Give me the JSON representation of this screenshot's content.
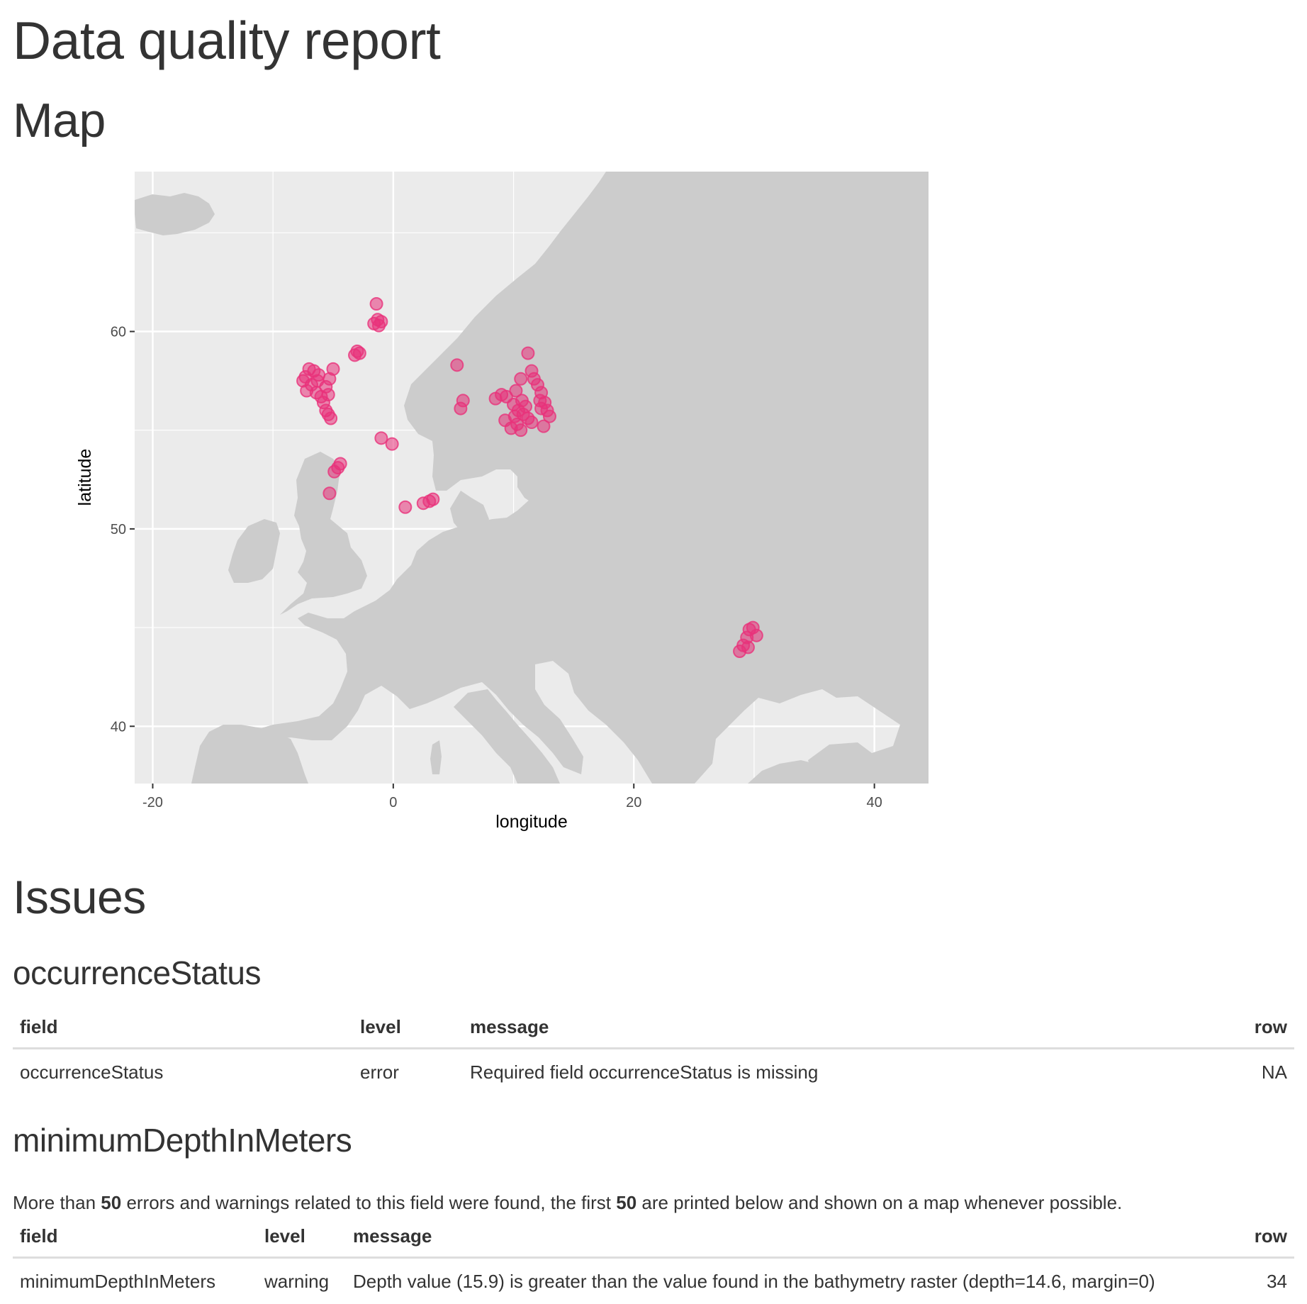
{
  "page": {
    "title": "Data quality report",
    "map_heading": "Map",
    "issues_heading": "Issues"
  },
  "map": {
    "xlabel": "longitude",
    "ylabel": "latitude",
    "x_ticks": [
      "-20",
      "0",
      "20",
      "40"
    ],
    "y_ticks": [
      "40",
      "50",
      "60"
    ],
    "colors": {
      "panel": "#ebebeb",
      "land": "#cccccc",
      "grid": "#ffffff",
      "point": "#e8327a"
    }
  },
  "chart_data": {
    "type": "scatter",
    "xlabel": "longitude",
    "ylabel": "latitude",
    "xlim": [
      -21.5,
      44.5
    ],
    "ylim": [
      37.1,
      68.1
    ],
    "x_ticks": [
      -20,
      0,
      20,
      40
    ],
    "y_ticks": [
      40,
      50,
      60
    ],
    "grid": true,
    "series": [
      {
        "points": [
          [
            -1.4,
            61.4
          ],
          [
            -1.3,
            60.6
          ],
          [
            -1.6,
            60.4
          ],
          [
            -1.2,
            60.3
          ],
          [
            -1.0,
            60.5
          ],
          [
            -3.0,
            59.0
          ],
          [
            -2.8,
            58.9
          ],
          [
            -3.2,
            58.8
          ],
          [
            -7.5,
            57.5
          ],
          [
            -7.0,
            58.1
          ],
          [
            -6.6,
            58.0
          ],
          [
            -6.2,
            57.8
          ],
          [
            -6.8,
            57.3
          ],
          [
            -7.2,
            57.0
          ],
          [
            -6.4,
            56.9
          ],
          [
            -6.0,
            56.7
          ],
          [
            -5.8,
            56.4
          ],
          [
            -5.6,
            56.0
          ],
          [
            -5.4,
            55.8
          ],
          [
            -5.2,
            55.6
          ],
          [
            -5.0,
            58.1
          ],
          [
            -5.3,
            57.6
          ],
          [
            -5.6,
            57.2
          ],
          [
            -6.3,
            57.5
          ],
          [
            -7.3,
            57.7
          ],
          [
            -5.4,
            56.8
          ],
          [
            -4.4,
            53.3
          ],
          [
            -4.6,
            53.1
          ],
          [
            -4.9,
            52.9
          ],
          [
            -5.3,
            51.8
          ],
          [
            -1.0,
            54.6
          ],
          [
            -0.1,
            54.3
          ],
          [
            1.0,
            51.1
          ],
          [
            2.5,
            51.3
          ],
          [
            3.0,
            51.4
          ],
          [
            3.3,
            51.5
          ],
          [
            5.3,
            58.3
          ],
          [
            5.6,
            56.1
          ],
          [
            5.8,
            56.5
          ],
          [
            8.5,
            56.6
          ],
          [
            9.0,
            56.8
          ],
          [
            9.4,
            56.7
          ],
          [
            10.2,
            57.0
          ],
          [
            10.6,
            57.6
          ],
          [
            11.2,
            58.9
          ],
          [
            11.5,
            58.0
          ],
          [
            11.7,
            57.6
          ],
          [
            12.0,
            57.3
          ],
          [
            12.3,
            56.9
          ],
          [
            10.0,
            56.3
          ],
          [
            10.4,
            56.0
          ],
          [
            10.8,
            55.8
          ],
          [
            11.2,
            55.6
          ],
          [
            10.3,
            55.3
          ],
          [
            9.8,
            55.1
          ],
          [
            10.7,
            56.5
          ],
          [
            11.0,
            56.2
          ],
          [
            10.1,
            55.7
          ],
          [
            10.6,
            55.0
          ],
          [
            11.5,
            55.4
          ],
          [
            12.3,
            56.1
          ],
          [
            12.6,
            56.4
          ],
          [
            12.8,
            56.0
          ],
          [
            13.0,
            55.7
          ],
          [
            12.5,
            55.2
          ],
          [
            12.2,
            56.5
          ],
          [
            9.3,
            55.5
          ],
          [
            29.6,
            44.9
          ],
          [
            29.9,
            45.0
          ],
          [
            30.2,
            44.6
          ],
          [
            29.4,
            44.5
          ],
          [
            29.1,
            44.1
          ],
          [
            28.8,
            43.8
          ],
          [
            29.5,
            44.0
          ]
        ]
      }
    ]
  },
  "issues": [
    {
      "name": "occurrenceStatus",
      "columns": [
        "field",
        "level",
        "message",
        "row"
      ],
      "rows": [
        {
          "field": "occurrenceStatus",
          "level": "error",
          "message": "Required field occurrenceStatus is missing",
          "row": "NA"
        }
      ]
    },
    {
      "name": "minimumDepthInMeters",
      "note": {
        "pre": "More than ",
        "n1": "50",
        "mid": " errors and warnings related to this field were found, the first ",
        "n2": "50",
        "post": " are printed below and shown on a map whenever possible."
      },
      "columns": [
        "field",
        "level",
        "message",
        "row"
      ],
      "rows": [
        {
          "field": "minimumDepthInMeters",
          "level": "warning",
          "message": "Depth value (15.9) is greater than the value found in the bathymetry raster (depth=14.6, margin=0)",
          "row": "34"
        }
      ]
    }
  ]
}
